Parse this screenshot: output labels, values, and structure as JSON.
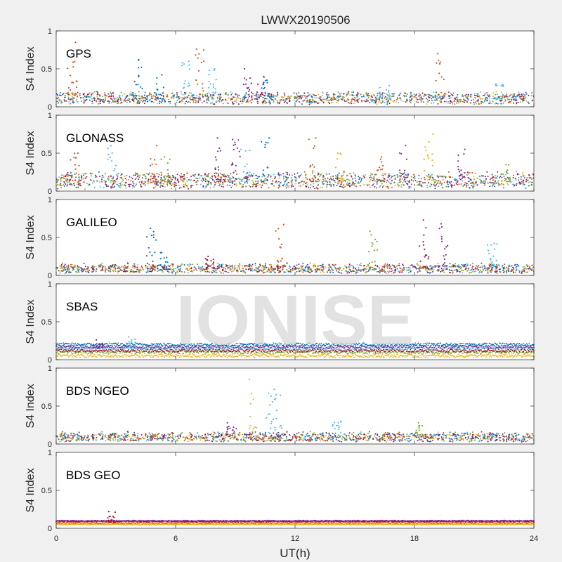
{
  "title": "LWWX20190506",
  "watermark": "IONISE",
  "colors": [
    "#0072bd",
    "#d95319",
    "#edb120",
    "#7e2f8e",
    "#77ac30",
    "#4dbeee",
    "#a2142f"
  ],
  "chart_data": {
    "type": "scatter",
    "title": "LWWX20190506",
    "xlabel": "UT(h)",
    "ylabel": "S4 Index",
    "xlim": [
      0,
      24
    ],
    "ylim": [
      0,
      1
    ],
    "xticks": [
      "0",
      "6",
      "12",
      "18",
      "24"
    ],
    "yticks": [
      "0",
      "0.5",
      "1"
    ],
    "grid": false,
    "panels": [
      {
        "name": "GPS",
        "baseline": 0.1,
        "noise": 0.045,
        "spikes": [
          [
            0.8,
            0.85,
            1
          ],
          [
            4.1,
            0.62,
            0
          ],
          [
            5.2,
            0.42,
            0
          ],
          [
            6.5,
            0.6,
            5
          ],
          [
            7.2,
            0.76,
            1
          ],
          [
            7.8,
            0.5,
            5
          ],
          [
            9.6,
            0.5,
            3
          ],
          [
            10.2,
            0.4,
            3
          ],
          [
            10.6,
            0.35,
            0
          ],
          [
            16.5,
            0.28,
            5
          ],
          [
            19.3,
            0.7,
            1
          ],
          [
            22.3,
            0.3,
            5
          ]
        ]
      },
      {
        "name": "GLONASS",
        "baseline": 0.12,
        "noise": 0.06,
        "spikes": [
          [
            0.9,
            0.5,
            1
          ],
          [
            2.8,
            0.65,
            5
          ],
          [
            4.9,
            0.6,
            1
          ],
          [
            5.5,
            0.45,
            4
          ],
          [
            8.1,
            0.7,
            3
          ],
          [
            9.0,
            0.68,
            3
          ],
          [
            9.5,
            0.55,
            5
          ],
          [
            10.5,
            0.7,
            0
          ],
          [
            12.9,
            0.7,
            1
          ],
          [
            14.3,
            0.5,
            2
          ],
          [
            16.3,
            0.45,
            1
          ],
          [
            17.5,
            0.6,
            3
          ],
          [
            18.7,
            0.75,
            2
          ],
          [
            20.3,
            0.55,
            3
          ],
          [
            22.6,
            0.35,
            4
          ]
        ]
      },
      {
        "name": "GALILEO",
        "baseline": 0.08,
        "noise": 0.035,
        "spikes": [
          [
            4.8,
            0.62,
            0
          ],
          [
            5.4,
            0.3,
            0
          ],
          [
            7.7,
            0.25,
            6
          ],
          [
            11.2,
            0.67,
            1
          ],
          [
            15.9,
            0.58,
            4
          ],
          [
            18.5,
            0.73,
            6
          ],
          [
            19.5,
            0.68,
            3
          ],
          [
            21.9,
            0.42,
            5
          ]
        ]
      },
      {
        "name": "SBAS",
        "baseline": 0.15,
        "noise": 0.02,
        "bands": [
          [
            0.05,
            2
          ],
          [
            0.1,
            4
          ],
          [
            0.12,
            6
          ],
          [
            0.15,
            5
          ],
          [
            0.17,
            3
          ],
          [
            0.2,
            0
          ]
        ],
        "spikes": [
          [
            2.1,
            0.26,
            3
          ],
          [
            3.8,
            0.3,
            5
          ]
        ]
      },
      {
        "name": "BDS NGEO",
        "baseline": 0.08,
        "noise": 0.035,
        "spikes": [
          [
            9.9,
            0.85,
            2
          ],
          [
            10.8,
            0.72,
            5
          ],
          [
            11.1,
            0.65,
            5
          ],
          [
            14.1,
            0.3,
            5
          ],
          [
            18.2,
            0.28,
            4
          ],
          [
            8.8,
            0.28,
            3
          ]
        ]
      },
      {
        "name": "BDS GEO",
        "baseline": 0.08,
        "noise": 0.006,
        "bands": [
          [
            0.05,
            2
          ],
          [
            0.07,
            1
          ],
          [
            0.09,
            6
          ],
          [
            0.1,
            3
          ]
        ],
        "spikes": [
          [
            2.8,
            0.22,
            6
          ]
        ]
      }
    ]
  }
}
